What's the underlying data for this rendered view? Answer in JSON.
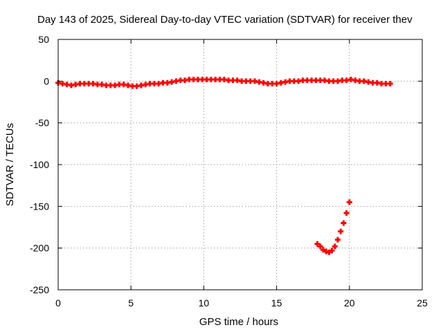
{
  "chart_data": {
    "type": "scatter",
    "title": "Day 143 of 2025, Sidereal Day-to-day VTEC variation (SDTVAR) for receiver thev",
    "xlabel": "GPS time / hours",
    "ylabel": "SDTVAR / TECUs",
    "xlim": [
      0,
      25
    ],
    "ylim": [
      -250,
      50
    ],
    "xticks": [
      0,
      5,
      10,
      15,
      20,
      25
    ],
    "yticks": [
      -250,
      -200,
      -150,
      -100,
      -50,
      0,
      50
    ],
    "grid": true,
    "legend": "none",
    "series": [
      {
        "color": "#ff0000",
        "marker": "plus",
        "points": [
          [
            0.0,
            -2
          ],
          [
            0.3,
            -3
          ],
          [
            0.6,
            -4
          ],
          [
            0.9,
            -5
          ],
          [
            1.2,
            -4
          ],
          [
            1.5,
            -3
          ],
          [
            1.8,
            -3
          ],
          [
            2.1,
            -3
          ],
          [
            2.4,
            -3
          ],
          [
            2.7,
            -4
          ],
          [
            3.0,
            -4
          ],
          [
            3.3,
            -5
          ],
          [
            3.6,
            -5
          ],
          [
            3.9,
            -5
          ],
          [
            4.2,
            -4
          ],
          [
            4.5,
            -4
          ],
          [
            4.8,
            -5
          ],
          [
            5.1,
            -6
          ],
          [
            5.4,
            -6
          ],
          [
            5.7,
            -5
          ],
          [
            6.0,
            -4
          ],
          [
            6.3,
            -3
          ],
          [
            6.6,
            -3
          ],
          [
            6.9,
            -3
          ],
          [
            7.2,
            -2
          ],
          [
            7.5,
            -2
          ],
          [
            7.8,
            -1
          ],
          [
            8.1,
            0
          ],
          [
            8.4,
            1
          ],
          [
            8.7,
            1
          ],
          [
            9.0,
            2
          ],
          [
            9.3,
            2
          ],
          [
            9.6,
            2
          ],
          [
            9.9,
            2
          ],
          [
            10.2,
            2
          ],
          [
            10.5,
            2
          ],
          [
            10.8,
            2
          ],
          [
            11.1,
            2
          ],
          [
            11.4,
            2
          ],
          [
            11.7,
            1
          ],
          [
            12.0,
            1
          ],
          [
            12.3,
            1
          ],
          [
            12.6,
            0
          ],
          [
            12.9,
            0
          ],
          [
            13.2,
            0
          ],
          [
            13.5,
            0
          ],
          [
            13.8,
            -1
          ],
          [
            14.1,
            -2
          ],
          [
            14.4,
            -3
          ],
          [
            14.7,
            -3
          ],
          [
            15.0,
            -3
          ],
          [
            15.3,
            -2
          ],
          [
            15.6,
            -1
          ],
          [
            15.9,
            0
          ],
          [
            16.2,
            0
          ],
          [
            16.5,
            0
          ],
          [
            16.8,
            1
          ],
          [
            17.1,
            1
          ],
          [
            17.4,
            1
          ],
          [
            17.7,
            1
          ],
          [
            18.0,
            1
          ],
          [
            18.3,
            1
          ],
          [
            18.6,
            0
          ],
          [
            18.9,
            0
          ],
          [
            19.2,
            0
          ],
          [
            19.5,
            1
          ],
          [
            19.8,
            1
          ],
          [
            20.1,
            2
          ],
          [
            20.4,
            1
          ],
          [
            20.7,
            0
          ],
          [
            21.0,
            0
          ],
          [
            21.3,
            -1
          ],
          [
            21.6,
            -2
          ],
          [
            21.9,
            -2
          ],
          [
            22.2,
            -3
          ],
          [
            22.5,
            -3
          ],
          [
            22.8,
            -3
          ],
          [
            17.8,
            -195
          ],
          [
            18.0,
            -198
          ],
          [
            18.2,
            -202
          ],
          [
            18.4,
            -204
          ],
          [
            18.6,
            -205
          ],
          [
            18.8,
            -203
          ],
          [
            19.0,
            -198
          ],
          [
            19.2,
            -190
          ],
          [
            19.4,
            -180
          ],
          [
            19.6,
            -170
          ],
          [
            19.8,
            -158
          ],
          [
            20.0,
            -145
          ]
        ]
      }
    ]
  }
}
